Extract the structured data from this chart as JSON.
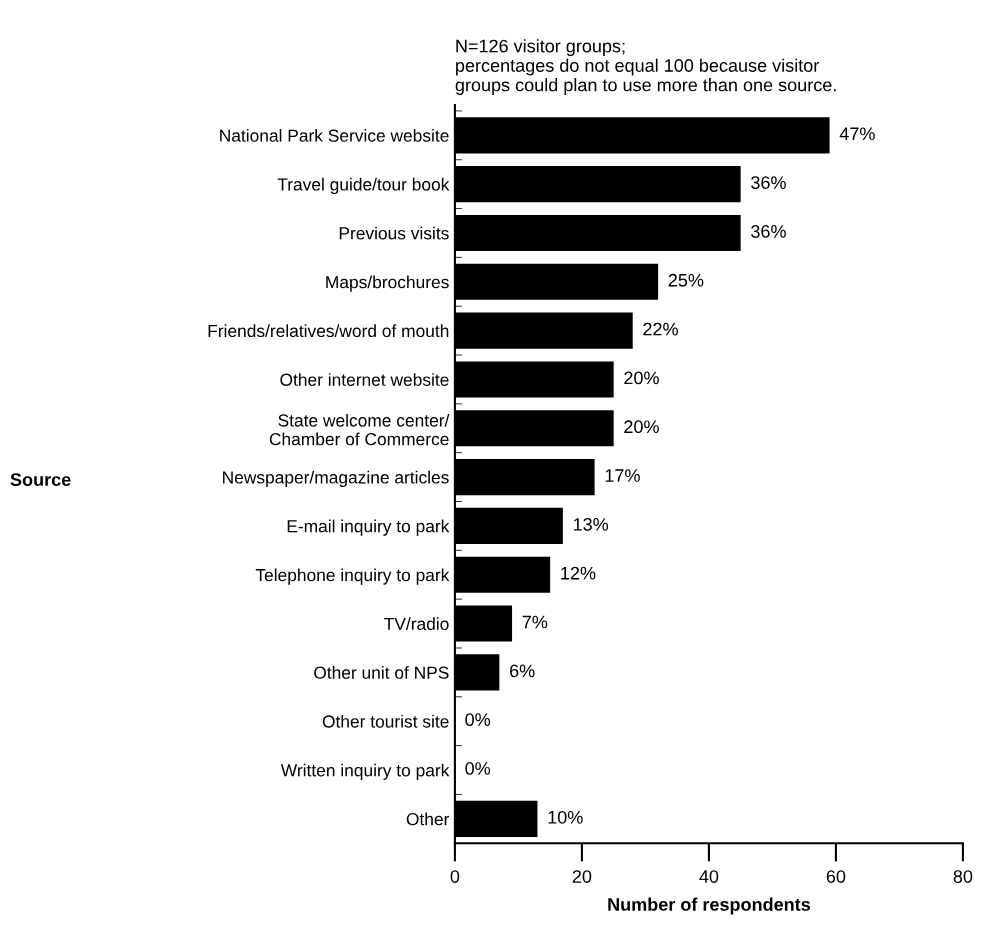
{
  "chart_data": {
    "type": "bar",
    "orientation": "horizontal",
    "title": "N=126 visitor groups;\npercentages do not equal 100 because visitor\ngroups could plan to use more than one source.",
    "xlabel": "Number of respondents",
    "categories": [
      "National Park Service website",
      "Travel guide/tour book",
      "Previous visits",
      "Maps/brochures",
      "Friends/relatives/word of mouth",
      "Other internet website",
      "State welcome center/\nChamber of Commerce",
      "Newspaper/magazine articles",
      "E-mail inquiry to park",
      "Telephone inquiry to park",
      "TV/radio",
      "Other unit of NPS",
      "Other tourist site",
      "Written inquiry to park",
      "Other"
    ],
    "values": [
      59,
      45,
      45,
      32,
      28,
      25,
      25,
      22,
      17,
      15,
      9,
      7,
      0,
      0,
      13
    ],
    "color": "#000000",
    "xlim": [
      0,
      80
    ],
    "xticks": [
      0,
      20,
      40,
      60,
      80
    ],
    "annotations": [
      "Source",
      {
        "text": "47%",
        "x": 59,
        "y": "National Park Service website"
      },
      {
        "text": "36%",
        "x": 45,
        "y": "Travel guide/tour book"
      },
      {
        "text": "36%",
        "x": 45,
        "y": "Previous visits"
      },
      {
        "text": "25%",
        "x": 32,
        "y": "Maps/brochures"
      },
      {
        "text": "22%",
        "x": 28,
        "y": "Friends/relatives/word of mouth"
      },
      {
        "text": "20%",
        "x": 25,
        "y": "Other internet website"
      },
      {
        "text": "20%",
        "x": 25,
        "y": "State welcome center/\nChamber of Commerce"
      },
      {
        "text": "17%",
        "x": 22,
        "y": "Newspaper/magazine articles"
      },
      {
        "text": "13%",
        "x": 17,
        "y": "E-mail inquiry to park"
      },
      {
        "text": "12%",
        "x": 15,
        "y": "Telephone inquiry to park"
      },
      {
        "text": "7%",
        "x": 9,
        "y": "TV/radio"
      },
      {
        "text": "6%",
        "x": 7,
        "y": "Other unit of NPS"
      },
      {
        "text": "0%",
        "x": 0,
        "y": "Other tourist site"
      },
      {
        "text": "0%",
        "x": 0,
        "y": "Written inquiry to park"
      },
      {
        "text": "10%",
        "x": 13,
        "y": "Other"
      }
    ],
    "grid": false,
    "legend": false
  }
}
